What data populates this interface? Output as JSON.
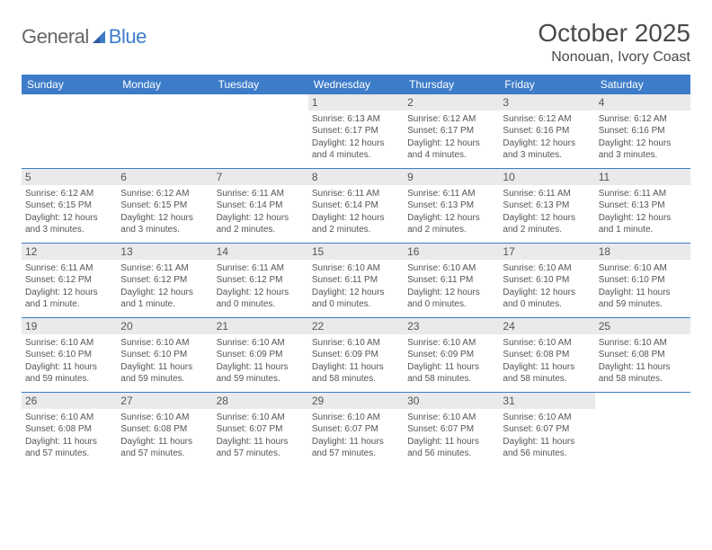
{
  "brand": {
    "part1": "General",
    "part2": "Blue"
  },
  "title": "October 2025",
  "location": "Nonouan, Ivory Coast",
  "weekdays": [
    "Sunday",
    "Monday",
    "Tuesday",
    "Wednesday",
    "Thursday",
    "Friday",
    "Saturday"
  ],
  "colors": {
    "header_bg": "#3d7cc9",
    "header_text": "#ffffff",
    "daynum_bg": "#e9eaeb",
    "border": "#3d7cc9",
    "text": "#4a4a4a",
    "logo_gray": "#666666",
    "logo_blue": "#3d7cc9"
  },
  "weeks": [
    [
      {
        "n": "",
        "empty": true
      },
      {
        "n": "",
        "empty": true
      },
      {
        "n": "",
        "empty": true
      },
      {
        "n": "1",
        "sr": "6:13 AM",
        "ss": "6:17 PM",
        "dl": "12 hours and 4 minutes."
      },
      {
        "n": "2",
        "sr": "6:12 AM",
        "ss": "6:17 PM",
        "dl": "12 hours and 4 minutes."
      },
      {
        "n": "3",
        "sr": "6:12 AM",
        "ss": "6:16 PM",
        "dl": "12 hours and 3 minutes."
      },
      {
        "n": "4",
        "sr": "6:12 AM",
        "ss": "6:16 PM",
        "dl": "12 hours and 3 minutes."
      }
    ],
    [
      {
        "n": "5",
        "sr": "6:12 AM",
        "ss": "6:15 PM",
        "dl": "12 hours and 3 minutes."
      },
      {
        "n": "6",
        "sr": "6:12 AM",
        "ss": "6:15 PM",
        "dl": "12 hours and 3 minutes."
      },
      {
        "n": "7",
        "sr": "6:11 AM",
        "ss": "6:14 PM",
        "dl": "12 hours and 2 minutes."
      },
      {
        "n": "8",
        "sr": "6:11 AM",
        "ss": "6:14 PM",
        "dl": "12 hours and 2 minutes."
      },
      {
        "n": "9",
        "sr": "6:11 AM",
        "ss": "6:13 PM",
        "dl": "12 hours and 2 minutes."
      },
      {
        "n": "10",
        "sr": "6:11 AM",
        "ss": "6:13 PM",
        "dl": "12 hours and 2 minutes."
      },
      {
        "n": "11",
        "sr": "6:11 AM",
        "ss": "6:13 PM",
        "dl": "12 hours and 1 minute."
      }
    ],
    [
      {
        "n": "12",
        "sr": "6:11 AM",
        "ss": "6:12 PM",
        "dl": "12 hours and 1 minute."
      },
      {
        "n": "13",
        "sr": "6:11 AM",
        "ss": "6:12 PM",
        "dl": "12 hours and 1 minute."
      },
      {
        "n": "14",
        "sr": "6:11 AM",
        "ss": "6:12 PM",
        "dl": "12 hours and 0 minutes."
      },
      {
        "n": "15",
        "sr": "6:10 AM",
        "ss": "6:11 PM",
        "dl": "12 hours and 0 minutes."
      },
      {
        "n": "16",
        "sr": "6:10 AM",
        "ss": "6:11 PM",
        "dl": "12 hours and 0 minutes."
      },
      {
        "n": "17",
        "sr": "6:10 AM",
        "ss": "6:10 PM",
        "dl": "12 hours and 0 minutes."
      },
      {
        "n": "18",
        "sr": "6:10 AM",
        "ss": "6:10 PM",
        "dl": "11 hours and 59 minutes."
      }
    ],
    [
      {
        "n": "19",
        "sr": "6:10 AM",
        "ss": "6:10 PM",
        "dl": "11 hours and 59 minutes."
      },
      {
        "n": "20",
        "sr": "6:10 AM",
        "ss": "6:10 PM",
        "dl": "11 hours and 59 minutes."
      },
      {
        "n": "21",
        "sr": "6:10 AM",
        "ss": "6:09 PM",
        "dl": "11 hours and 59 minutes."
      },
      {
        "n": "22",
        "sr": "6:10 AM",
        "ss": "6:09 PM",
        "dl": "11 hours and 58 minutes."
      },
      {
        "n": "23",
        "sr": "6:10 AM",
        "ss": "6:09 PM",
        "dl": "11 hours and 58 minutes."
      },
      {
        "n": "24",
        "sr": "6:10 AM",
        "ss": "6:08 PM",
        "dl": "11 hours and 58 minutes."
      },
      {
        "n": "25",
        "sr": "6:10 AM",
        "ss": "6:08 PM",
        "dl": "11 hours and 58 minutes."
      }
    ],
    [
      {
        "n": "26",
        "sr": "6:10 AM",
        "ss": "6:08 PM",
        "dl": "11 hours and 57 minutes."
      },
      {
        "n": "27",
        "sr": "6:10 AM",
        "ss": "6:08 PM",
        "dl": "11 hours and 57 minutes."
      },
      {
        "n": "28",
        "sr": "6:10 AM",
        "ss": "6:07 PM",
        "dl": "11 hours and 57 minutes."
      },
      {
        "n": "29",
        "sr": "6:10 AM",
        "ss": "6:07 PM",
        "dl": "11 hours and 57 minutes."
      },
      {
        "n": "30",
        "sr": "6:10 AM",
        "ss": "6:07 PM",
        "dl": "11 hours and 56 minutes."
      },
      {
        "n": "31",
        "sr": "6:10 AM",
        "ss": "6:07 PM",
        "dl": "11 hours and 56 minutes."
      },
      {
        "n": "",
        "empty": true
      }
    ]
  ]
}
